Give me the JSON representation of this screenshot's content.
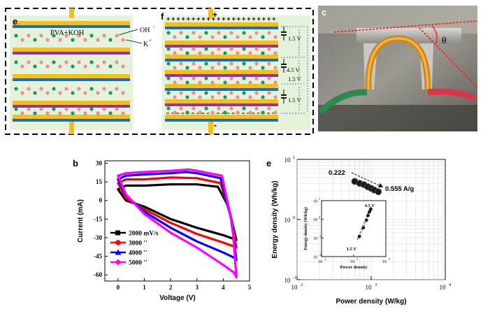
{
  "colors": {
    "yellow": "#f7be16",
    "blue": "#1b6fb7",
    "purple": "#8a36a8",
    "green_bg": "#e5f2da",
    "ion_pink": "#e98f8f",
    "ion_teal": "#1f8f7a",
    "dash_border": "#000000",
    "s2000": "#000000",
    "s3000": "#ff0000",
    "s4000": "#0000ff",
    "s5000": "#ff00ff"
  },
  "panel_e_top": {
    "letter": "e",
    "electrolyte_label": "PVA+KOH",
    "oh_label": "OH",
    "oh_sup": "-",
    "k_label": "K",
    "k_sup": "+"
  },
  "panel_f": {
    "letter": "f",
    "plus_label": "+",
    "minus_label": "-",
    "cell_voltage_1": "1.5 V",
    "cell_voltage_2": "1.5 V",
    "cell_voltage_3": "1.5 V",
    "total_voltage": "4.5 V"
  },
  "panel_c": {
    "letter": "c",
    "angle_label": "θ"
  },
  "panel_b": {
    "letter": "b",
    "icon": "cv-curves",
    "chart_data": {
      "type": "line",
      "xlabel": "Voltage (V)",
      "ylabel": "Current (mA)",
      "xlim": [
        -0.5,
        5
      ],
      "ylim": [
        -65,
        32
      ],
      "xticks": [
        "0",
        "1",
        "2",
        "3",
        "4",
        "5"
      ],
      "yticks": [
        "30",
        "15",
        "0",
        "-15",
        "-30",
        "-45",
        "-60"
      ],
      "grid": false,
      "legend_position": "bottom-left",
      "series": [
        {
          "name": "2000 mV/s",
          "upper": [
            [
              0,
              9
            ],
            [
              0.3,
              12
            ],
            [
              1,
              12
            ],
            [
              2,
              13
            ],
            [
              3,
              13
            ],
            [
              3.8,
              11
            ],
            [
              4.2,
              -5
            ],
            [
              4.5,
              -32
            ]
          ],
          "lower": [
            [
              0,
              9
            ],
            [
              0.3,
              0
            ],
            [
              1,
              -5
            ],
            [
              2,
              -15
            ],
            [
              3,
              -22
            ],
            [
              4,
              -28
            ],
            [
              4.4,
              -31
            ],
            [
              4.5,
              -32
            ]
          ]
        },
        {
          "name": "3000 ''",
          "upper": [
            [
              0,
              14
            ],
            [
              0.3,
              17
            ],
            [
              1,
              17
            ],
            [
              2,
              18.5
            ],
            [
              3,
              18
            ],
            [
              3.9,
              14
            ],
            [
              4.25,
              -10
            ],
            [
              4.5,
              -38
            ]
          ],
          "lower": [
            [
              0,
              14
            ],
            [
              0.3,
              2
            ],
            [
              1,
              -7
            ],
            [
              2,
              -18
            ],
            [
              3,
              -27
            ],
            [
              4,
              -34
            ],
            [
              4.4,
              -37
            ],
            [
              4.5,
              -38
            ]
          ]
        },
        {
          "name": "4000 ''",
          "upper": [
            [
              0,
              17
            ],
            [
              0.3,
              20
            ],
            [
              1,
              21
            ],
            [
              2,
              22
            ],
            [
              2.6,
              23
            ],
            [
              3,
              22
            ],
            [
              3.9,
              18
            ],
            [
              4.3,
              -15
            ],
            [
              4.5,
              -48
            ]
          ],
          "lower": [
            [
              0,
              17
            ],
            [
              0.3,
              4
            ],
            [
              1,
              -9
            ],
            [
              2,
              -22
            ],
            [
              3,
              -33
            ],
            [
              4,
              -42
            ],
            [
              4.4,
              -46
            ],
            [
              4.5,
              -48
            ]
          ]
        },
        {
          "name": "5000 ''",
          "upper": [
            [
              0,
              20
            ],
            [
              0.3,
              22
            ],
            [
              1,
              23
            ],
            [
              2,
              24
            ],
            [
              2.7,
              25
            ],
            [
              3,
              24
            ],
            [
              3.95,
              20
            ],
            [
              4.35,
              -20
            ],
            [
              4.5,
              -62
            ]
          ],
          "lower": [
            [
              0,
              20
            ],
            [
              0.3,
              5
            ],
            [
              1,
              -11
            ],
            [
              2,
              -26
            ],
            [
              3,
              -38
            ],
            [
              4,
              -52
            ],
            [
              4.4,
              -58
            ],
            [
              4.5,
              -62
            ]
          ]
        }
      ]
    }
  },
  "panel_e_bottom": {
    "letter": "e",
    "chart_data": {
      "type": "scatter",
      "scale": "log-log",
      "xlabel": "Power density (W/kg)",
      "ylabel": "Energy density (Wh/kg)",
      "xlim": [
        100,
        10000
      ],
      "ylim": [
        0.1,
        10
      ],
      "grid": true,
      "xticks": [
        {
          "base": "10",
          "exp": "2"
        },
        {
          "base": "10",
          "exp": "3"
        },
        {
          "base": "10",
          "exp": "4"
        }
      ],
      "yticks": [
        {
          "base": "10",
          "exp": "-1"
        },
        {
          "base": "10",
          "exp": "0"
        },
        {
          "base": "10",
          "exp": "1"
        }
      ],
      "points": [
        [
          600,
          4.3
        ],
        [
          700,
          4.0
        ],
        [
          800,
          3.8
        ],
        [
          900,
          3.5
        ],
        [
          1000,
          3.3
        ],
        [
          1100,
          3.1
        ],
        [
          1250,
          2.9
        ]
      ],
      "annotation_start": "0.222",
      "annotation_end": "0.555 A/g",
      "inset": {
        "xlabel": "Power density",
        "ylabel": "Energy density (Wh/kg)",
        "xlim": [
          10,
          1000
        ],
        "ylim": [
          0.01,
          10
        ],
        "xticks": [
          {
            "base": "10",
            "exp": "1"
          },
          {
            "base": "10",
            "exp": "2"
          },
          {
            "base": "10",
            "exp": "3"
          }
        ],
        "yticks": [
          {
            "base": "10",
            "exp": "-2"
          },
          {
            "base": "10",
            "exp": "-1"
          },
          {
            "base": "10",
            "exp": "0"
          },
          {
            "base": "10",
            "exp": "1"
          }
        ],
        "points": [
          [
            150,
            0.12
          ],
          [
            200,
            0.35
          ],
          [
            250,
            0.9
          ],
          [
            280,
            1.6
          ],
          [
            310,
            2.5
          ],
          [
            340,
            3.5
          ]
        ],
        "label_high": "4.5 V",
        "label_low": "1.5 V"
      }
    }
  }
}
